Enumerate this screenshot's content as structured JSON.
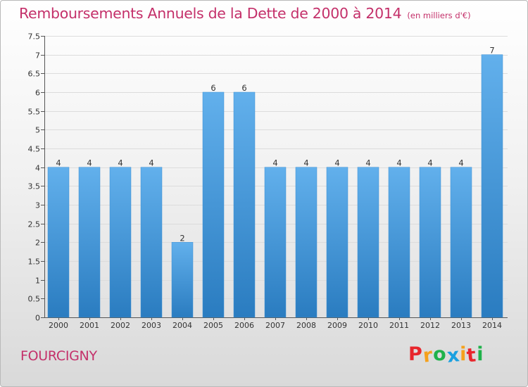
{
  "title": "Remboursements Annuels de la Dette de 2000 à 2014",
  "unit": "(en milliers d'€)",
  "city": "FOURCIGNY",
  "logo": {
    "letters": [
      "P",
      "r",
      "o",
      "x",
      "i",
      "t",
      "i"
    ],
    "colors": [
      "#e8262c",
      "#f5a11c",
      "#1fb24a",
      "#1aa0e0",
      "#f5a11c",
      "#e8262c",
      "#1fb24a"
    ]
  },
  "colors": {
    "accent": "#c4306a",
    "bar_top": "#62b0ec",
    "bar_bottom": "#2a7cc0"
  },
  "chart_data": {
    "type": "bar",
    "categories": [
      "2000",
      "2001",
      "2002",
      "2003",
      "2004",
      "2005",
      "2006",
      "2007",
      "2008",
      "2009",
      "2010",
      "2011",
      "2012",
      "2013",
      "2014"
    ],
    "values": [
      4,
      4,
      4,
      4,
      2,
      6,
      6,
      4,
      4,
      4,
      4,
      4,
      4,
      4,
      7
    ],
    "data_labels": [
      "4",
      "4",
      "4",
      "4",
      "2",
      "6",
      "6",
      "4",
      "4",
      "4",
      "4",
      "4",
      "4",
      "4",
      "7"
    ],
    "y_ticks": [
      0,
      0.5,
      1,
      1.5,
      2,
      2.5,
      3,
      3.5,
      4,
      4.5,
      5,
      5.5,
      6,
      6.5,
      7,
      7.5
    ],
    "y_tick_labels": [
      "0",
      "0.5",
      "1",
      "1.5",
      "2",
      "2.5",
      "3",
      "3.5",
      "4",
      "4.5",
      "5",
      "5.5",
      "6",
      "6.5",
      "7",
      "7.5"
    ],
    "ylim": [
      0,
      7.5
    ],
    "xlabel": "",
    "ylabel": "",
    "grid": true
  }
}
